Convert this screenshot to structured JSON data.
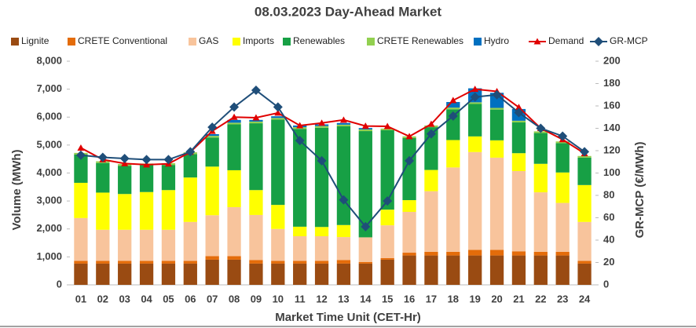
{
  "chart_data": {
    "type": "bar",
    "stacked": true,
    "title": "08.03.2023  Day-Ahead Market",
    "x_label": "Market Time Unit (CET-Hr)",
    "y_label": "Volume (MWh)",
    "y2_label": "GR-MCP (€/MWh)",
    "categories": [
      "01",
      "02",
      "03",
      "04",
      "05",
      "06",
      "07",
      "08",
      "09",
      "10",
      "11",
      "12",
      "13",
      "14",
      "15",
      "16",
      "17",
      "18",
      "19",
      "20",
      "21",
      "22",
      "23",
      "24"
    ],
    "ylim": [
      0,
      8000
    ],
    "yticks": [
      0,
      {
        "value": 1000,
        "label": "1,000"
      },
      {
        "value": 2000,
        "label": "2,000"
      },
      {
        "value": 3000,
        "label": "3,000"
      },
      {
        "value": 4000,
        "label": "4,000"
      },
      {
        "value": 5000,
        "label": "5,000"
      },
      {
        "value": 6000,
        "label": "6,000"
      },
      {
        "value": 7000,
        "label": "7,000"
      },
      {
        "value": 8000,
        "label": "8,000"
      }
    ],
    "y2lim": [
      0,
      200
    ],
    "y2ticks": [
      0,
      20,
      40,
      60,
      80,
      100,
      120,
      140,
      160,
      180,
      200
    ],
    "series": [
      {
        "name": "Lignite",
        "color": "#9a4b12",
        "values": [
          760,
          760,
          760,
          760,
          760,
          760,
          900,
          900,
          760,
          760,
          760,
          760,
          760,
          760,
          900,
          1050,
          1050,
          1050,
          1050,
          1050,
          1050,
          1050,
          1050,
          760
        ]
      },
      {
        "name": "CRETE Conventional",
        "color": "#e46c0a",
        "values": [
          100,
          100,
          100,
          100,
          100,
          100,
          130,
          130,
          130,
          100,
          100,
          100,
          130,
          60,
          60,
          100,
          130,
          130,
          200,
          200,
          150,
          130,
          130,
          100
        ]
      },
      {
        "name": "GAS",
        "color": "#f8c49c",
        "values": [
          1530,
          1110,
          1110,
          1110,
          1110,
          1390,
          1460,
          1750,
          1610,
          1140,
          880,
          880,
          820,
          880,
          1170,
          1460,
          2170,
          3020,
          3500,
          3300,
          2870,
          2130,
          1750,
          1390
        ]
      },
      {
        "name": "Imports",
        "color": "#ffff00",
        "values": [
          1260,
          1330,
          1280,
          1350,
          1420,
          1590,
          1740,
          1320,
          890,
          860,
          340,
          330,
          430,
          0,
          560,
          420,
          760,
          980,
          560,
          620,
          640,
          1020,
          1090,
          1320
        ]
      },
      {
        "name": "Renewables",
        "color": "#17a045",
        "values": [
          1010,
          1060,
          1010,
          960,
          900,
          840,
          1040,
          1640,
          2390,
          3050,
          3500,
          3550,
          3530,
          3800,
          2840,
          2220,
          1530,
          1100,
          1160,
          1100,
          1100,
          1100,
          1050,
          980
        ]
      },
      {
        "name": "CRETE Renewables",
        "color": "#92d050",
        "values": [
          60,
          60,
          60,
          60,
          60,
          60,
          60,
          60,
          60,
          60,
          60,
          60,
          60,
          60,
          60,
          60,
          60,
          60,
          60,
          60,
          60,
          60,
          60,
          60
        ]
      },
      {
        "name": "Hydro",
        "color": "#0070c0",
        "values": [
          0,
          0,
          0,
          0,
          0,
          0,
          60,
          100,
          60,
          60,
          60,
          60,
          60,
          50,
          0,
          0,
          0,
          200,
          500,
          540,
          420,
          0,
          0,
          0
        ]
      },
      {
        "name": "Demand",
        "type": "line",
        "marker": "triangle",
        "color": "#e00000",
        "values": [
          4900,
          4480,
          4340,
          4300,
          4330,
          4750,
          5500,
          6000,
          5980,
          6150,
          5700,
          5790,
          5900,
          5680,
          5670,
          5310,
          5750,
          6600,
          7000,
          6920,
          6350,
          5600,
          5200,
          4700
        ]
      },
      {
        "name": "GR-MCP",
        "type": "line",
        "marker": "diamond",
        "axis": "y2",
        "color": "#1f4e79",
        "values": [
          116,
          114,
          113,
          112,
          112,
          119,
          141,
          159,
          174,
          159,
          129,
          111,
          76,
          52,
          75,
          111,
          135,
          151,
          168,
          170,
          154,
          140,
          133,
          119
        ]
      }
    ]
  }
}
